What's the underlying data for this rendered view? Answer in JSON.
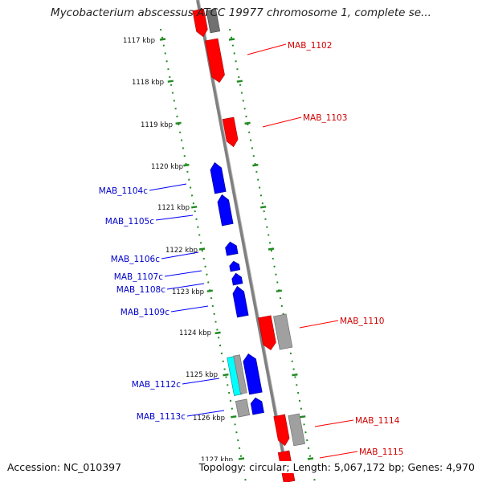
{
  "title": "Mycobacterium abscessus ATCC 19977 chromosome 1, complete se...",
  "footer": {
    "accession": "Accession: NC_010397",
    "topology": "Topology: circular; Length: 5,067,172 bp; Genes: 4,970"
  },
  "colors": {
    "forward_gene": "#ff0000",
    "reverse_gene": "#0000ff",
    "forward_label": "#d00000",
    "reverse_label": "#0000cc",
    "gray_feature": "#a0a0a0",
    "dark_gray_feature": "#707070",
    "cyan_feature": "#00ffff",
    "tick": "#228b22",
    "backbone": "#808080"
  },
  "axis": {
    "unit": "kbp",
    "tick_labels": [
      "1117 kbp",
      "1118 kbp",
      "1119 kbp",
      "1120 kbp",
      "1121 kbp",
      "1122 kbp",
      "1123 kbp",
      "1124 kbp",
      "1125 kbp",
      "1126 kbp",
      "1127 kbp"
    ]
  },
  "forward_labels": [
    "MAB_1102",
    "MAB_1103",
    "MAB_1110",
    "MAB_1114",
    "MAB_1115"
  ],
  "reverse_labels": [
    "MAB_1104c",
    "MAB_1105c",
    "MAB_1106c",
    "MAB_1107c",
    "MAB_1108c",
    "MAB_1109c",
    "MAB_1112c",
    "MAB_1113c"
  ]
}
